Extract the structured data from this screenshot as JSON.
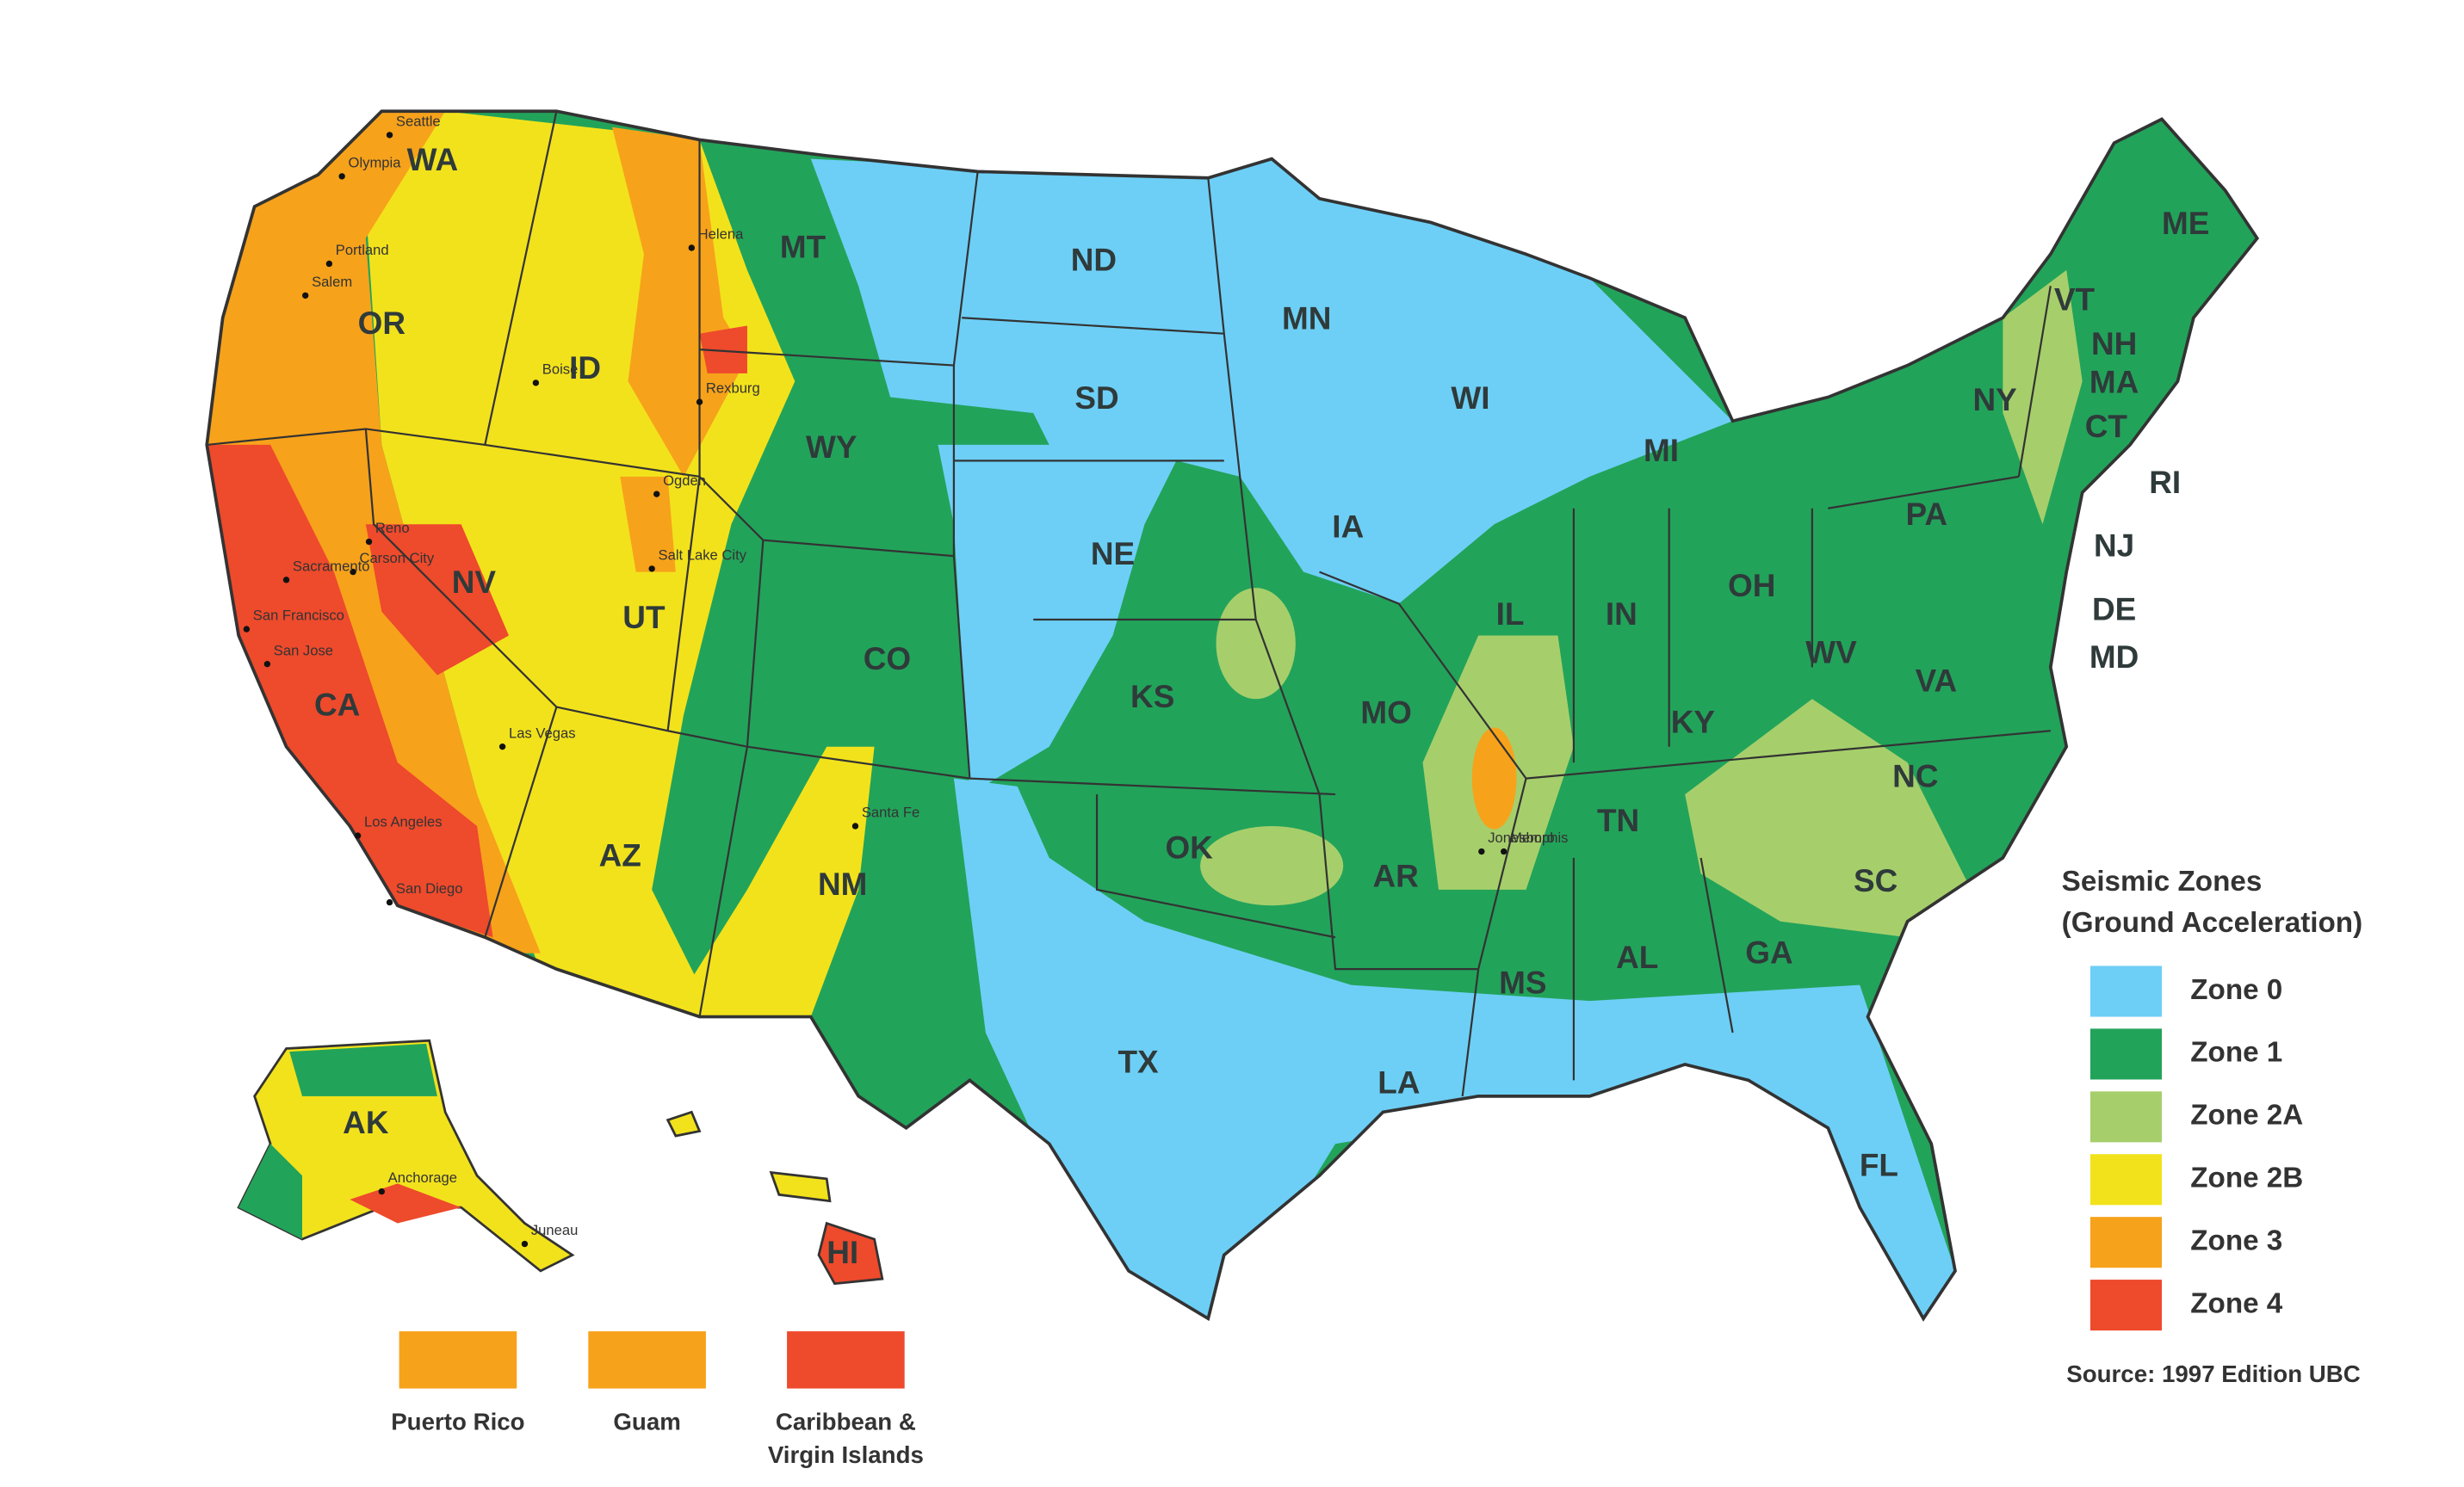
{
  "legend": {
    "title_lines": [
      "Seismic Zones",
      "(Ground Acceleration)"
    ],
    "items": [
      {
        "label": "Zone 0",
        "color": "#6dcff6"
      },
      {
        "label": "Zone 1",
        "color": "#22a35a"
      },
      {
        "label": "Zone 2A",
        "color": "#a6cf6b"
      },
      {
        "label": "Zone 2B",
        "color": "#f2e21c"
      },
      {
        "label": "Zone 3",
        "color": "#f7a21b"
      },
      {
        "label": "Zone 4",
        "color": "#ee4a2c"
      }
    ]
  },
  "source": "Source: 1997 Edition UBC",
  "states": [
    "WA",
    "OR",
    "ID",
    "MT",
    "WY",
    "NV",
    "UT",
    "CA",
    "AZ",
    "CO",
    "NM",
    "ND",
    "SD",
    "NE",
    "KS",
    "OK",
    "TX",
    "MN",
    "IA",
    "MO",
    "AR",
    "LA",
    "WI",
    "MI",
    "IL",
    "IN",
    "OH",
    "KY",
    "TN",
    "MS",
    "AL",
    "GA",
    "FL",
    "SC",
    "NC",
    "VA",
    "WV",
    "PA",
    "NY",
    "VT",
    "NH",
    "MA",
    "CT",
    "RI",
    "NJ",
    "DE",
    "MD",
    "ME",
    "AK",
    "HI"
  ],
  "cities": [
    "Seattle",
    "Olympia",
    "Portland",
    "Salem",
    "Helena",
    "Boise",
    "Rexburg",
    "Ogden",
    "Salt Lake City",
    "Reno",
    "Carson City",
    "Sacramento",
    "San Francisco",
    "San Jose",
    "Las Vegas",
    "Los Angeles",
    "San Diego",
    "Santa Fe",
    "Jonesboro",
    "Memphis",
    "Anchorage",
    "Juneau"
  ],
  "territories": [
    {
      "lines": [
        "Puerto Rico"
      ],
      "color": "#f7a21b"
    },
    {
      "lines": [
        "Guam"
      ],
      "color": "#f7a21b"
    },
    {
      "lines": [
        "Caribbean &",
        "Virgin Islands"
      ],
      "color": "#ee4a2c"
    }
  ]
}
